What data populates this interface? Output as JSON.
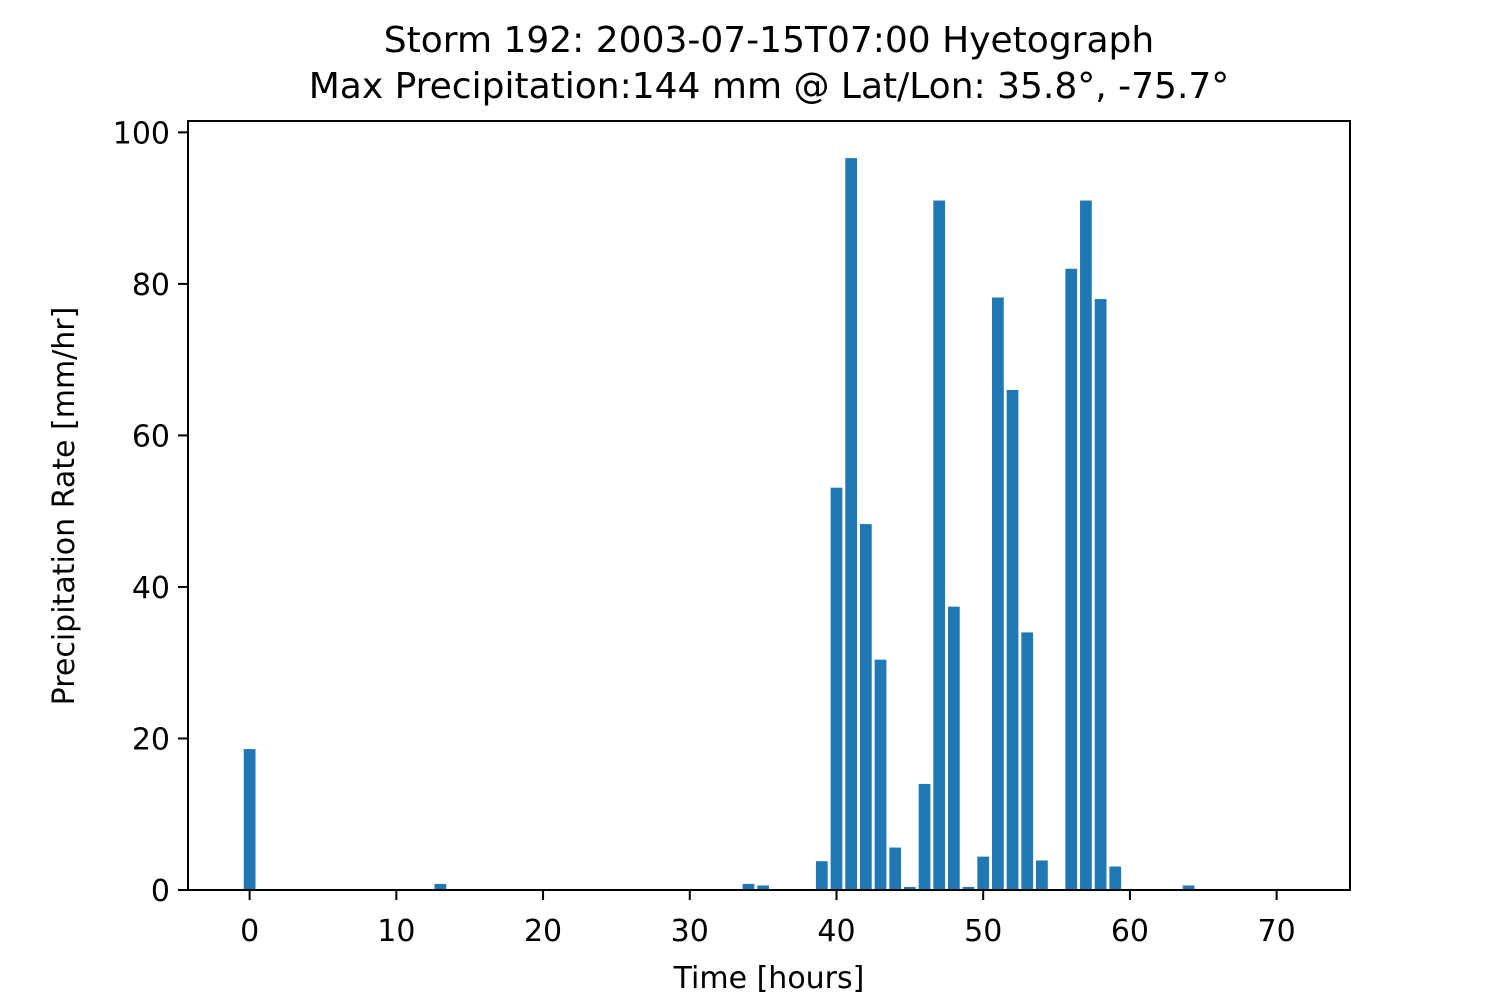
{
  "chart_data": {
    "type": "bar",
    "title_line1": "Storm 192: 2003-07-15T07:00 Hyetograph",
    "title_line2": "Max Precipitation:144 mm @ Lat/Lon:  35.8°, -75.7°",
    "xlabel": "Time [hours]",
    "ylabel": "Precipitation Rate [mm/hr]",
    "xlim": [
      -4.2,
      75
    ],
    "ylim": [
      0,
      101.5
    ],
    "xticks": [
      0,
      10,
      20,
      30,
      40,
      50,
      60,
      70
    ],
    "yticks": [
      0,
      20,
      40,
      60,
      80,
      100
    ],
    "bar_color": "#1f77b4",
    "grid": false,
    "x": [
      0,
      13,
      34,
      35,
      39,
      40,
      41,
      42,
      43,
      44,
      45,
      46,
      47,
      48,
      49,
      50,
      51,
      52,
      53,
      54,
      56,
      57,
      58,
      59,
      64
    ],
    "values": [
      18.6,
      0.8,
      0.8,
      0.6,
      3.8,
      53.1,
      96.6,
      48.3,
      30.4,
      5.6,
      0.4,
      14.0,
      91.0,
      37.4,
      0.4,
      4.4,
      78.2,
      66.0,
      34.0,
      3.9,
      82.0,
      91.0,
      78.0,
      3.1,
      0.6
    ]
  }
}
